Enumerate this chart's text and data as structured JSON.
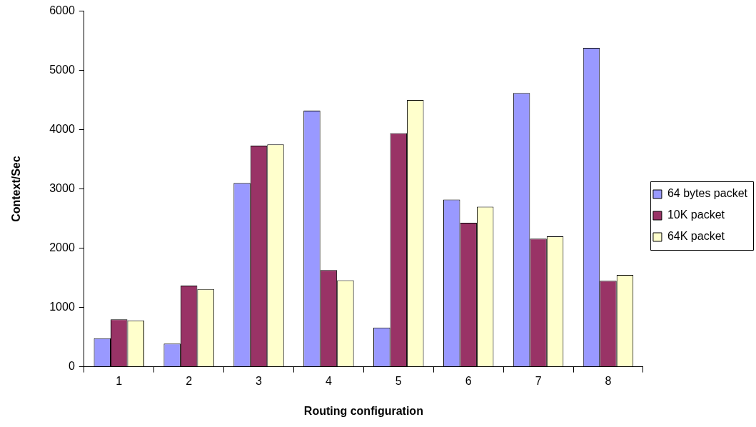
{
  "chart_data": {
    "type": "bar",
    "xlabel": "Routing configuration",
    "ylabel": "Context/Sec",
    "categories": [
      "1",
      "2",
      "3",
      "4",
      "5",
      "6",
      "7",
      "8"
    ],
    "series": [
      {
        "name": "64 bytes packet",
        "color": "#9999ff",
        "values": [
          480,
          390,
          3100,
          4320,
          660,
          2820,
          4620,
          5380
        ]
      },
      {
        "name": "10K packet",
        "color": "#993366",
        "values": [
          800,
          1370,
          3730,
          1630,
          3940,
          2430,
          2160,
          1450
        ]
      },
      {
        "name": "64K packet",
        "color": "#ffffcc",
        "values": [
          780,
          1310,
          3750,
          1460,
          4500,
          2700,
          2200,
          1550
        ]
      }
    ],
    "ylim": [
      0,
      6000
    ],
    "yticks": [
      0,
      1000,
      2000,
      3000,
      4000,
      5000,
      6000
    ],
    "grid": false,
    "legend": "right"
  }
}
